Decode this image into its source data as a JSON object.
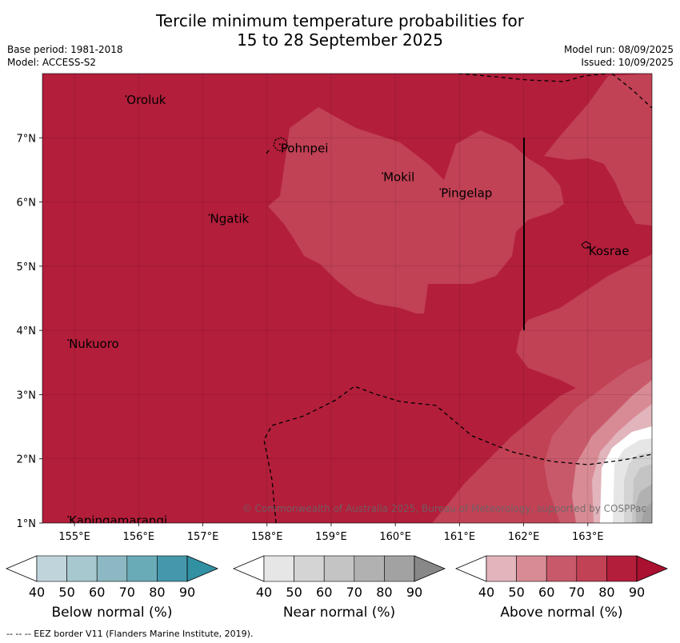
{
  "title_line1": "Tercile minimum temperature probabilities for",
  "title_line2": "15 to 28 September 2025",
  "base_period": "Base period: 1981-2018",
  "model": "Model: ACCESS-S2",
  "model_run": "Model run: 08/09/2025",
  "issued": "Issued: 10/09/2025",
  "copyright": "© Commonwealth of Australia 2025, Bureau of Meteorology, supported by COSPPac",
  "footer": "--  --  -- EEZ border V11 (Flanders Marine Institute, 2019).",
  "map": {
    "lon_range": [
      154.5,
      164.0
    ],
    "lat_range": [
      1.0,
      8.0
    ],
    "x_ticks": [
      {
        "value": 155,
        "label": "155°E"
      },
      {
        "value": 156,
        "label": "156°E"
      },
      {
        "value": 157,
        "label": "157°E"
      },
      {
        "value": 158,
        "label": "158°E"
      },
      {
        "value": 159,
        "label": "159°E"
      },
      {
        "value": 160,
        "label": "160°E"
      },
      {
        "value": 161,
        "label": "161°E"
      },
      {
        "value": 162,
        "label": "162°E"
      },
      {
        "value": 163,
        "label": "163°E"
      }
    ],
    "y_ticks": [
      {
        "value": 1,
        "label": "1°N"
      },
      {
        "value": 2,
        "label": "2°N"
      },
      {
        "value": 3,
        "label": "3°N"
      },
      {
        "value": 4,
        "label": "4°N"
      },
      {
        "value": 5,
        "label": "5°N"
      },
      {
        "value": 6,
        "label": "6°N"
      },
      {
        "value": 7,
        "label": "7°N"
      }
    ],
    "places": [
      {
        "name": "Oroluk",
        "lon": 155.8,
        "lat": 7.65
      },
      {
        "name": "Pohnpei",
        "lon": 158.2,
        "lat": 6.9
      },
      {
        "name": "Mokil",
        "lon": 159.8,
        "lat": 6.45
      },
      {
        "name": "Pingelap",
        "lon": 160.7,
        "lat": 6.2
      },
      {
        "name": "Ngatik",
        "lon": 157.1,
        "lat": 5.8
      },
      {
        "name": "Kosrae",
        "lon": 163.0,
        "lat": 5.3
      },
      {
        "name": "Nukuoro",
        "lon": 154.9,
        "lat": 3.85
      },
      {
        "name": "Kapingamarangi",
        "lon": 154.9,
        "lat": 1.1
      }
    ],
    "colors": {
      "above_80": "#b31e3b",
      "above_70": "#c14155",
      "above_60": "#c8596a",
      "above_50": "#d88b95",
      "above_40": "#e2b4bb",
      "near_40": "#e6e6e6",
      "near_50": "#d4d4d4",
      "near_60": "#c4c4c4",
      "near_70": "#b1b1b1",
      "near_80": "#a2a2a2"
    }
  },
  "legends": [
    {
      "label": "Below normal (%)",
      "ticks": [
        "40",
        "50",
        "60",
        "70",
        "80",
        "90"
      ],
      "colors": [
        "#ffffff",
        "#c0d5db",
        "#a7c8ce",
        "#8bb8c2",
        "#6aabb8",
        "#4598ab",
        "#3290a3"
      ]
    },
    {
      "label": "Near normal (%)",
      "ticks": [
        "40",
        "50",
        "60",
        "70",
        "80",
        "90"
      ],
      "colors": [
        "#ffffff",
        "#e6e6e6",
        "#d4d4d4",
        "#c4c4c4",
        "#b1b1b1",
        "#a2a2a2",
        "#888888"
      ]
    },
    {
      "label": "Above normal (%)",
      "ticks": [
        "40",
        "50",
        "60",
        "70",
        "80",
        "90"
      ],
      "colors": [
        "#ffffff",
        "#e2b4bb",
        "#d88b95",
        "#c8596a",
        "#c14155",
        "#b31e3b",
        "#aa1030"
      ]
    }
  ]
}
